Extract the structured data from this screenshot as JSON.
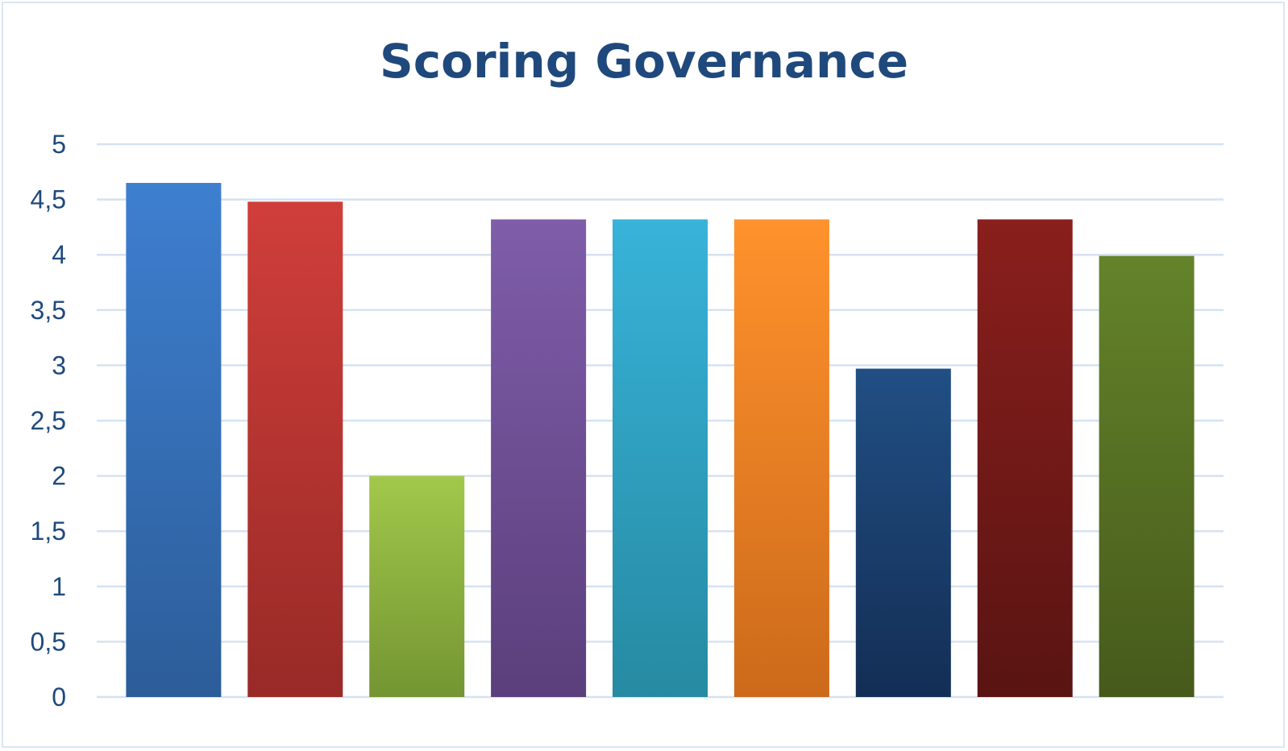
{
  "chart_data": {
    "type": "bar",
    "title": "Scoring Governance",
    "xlabel": "",
    "ylabel": "",
    "categories": [
      "",
      "",
      "",
      "",
      "",
      "",
      "",
      "",
      ""
    ],
    "values": [
      4.65,
      4.48,
      2.0,
      4.32,
      4.32,
      4.32,
      2.97,
      4.32,
      3.99
    ],
    "ylim": [
      0,
      5
    ],
    "yticks": [
      "0",
      "0,5",
      "1",
      "1,5",
      "2",
      "2,5",
      "3",
      "3,5",
      "4",
      "4,5",
      "5"
    ],
    "grid": true,
    "legend": "none",
    "colors": [
      [
        "#3e7fd0",
        "#2c5d99"
      ],
      [
        "#d03e3a",
        "#982a27"
      ],
      [
        "#a2c84b",
        "#749532"
      ],
      [
        "#7f5da9",
        "#5b3f7c"
      ],
      [
        "#38b3d9",
        "#268aa2"
      ],
      [
        "#ff922c",
        "#cc6a1b"
      ],
      [
        "#214f84",
        "#132e55"
      ],
      [
        "#8a1f1d",
        "#591412"
      ],
      [
        "#64832a",
        "#465a1b"
      ]
    ],
    "gridline_color": "#d6e2f0",
    "text_color": "#1f497d"
  }
}
